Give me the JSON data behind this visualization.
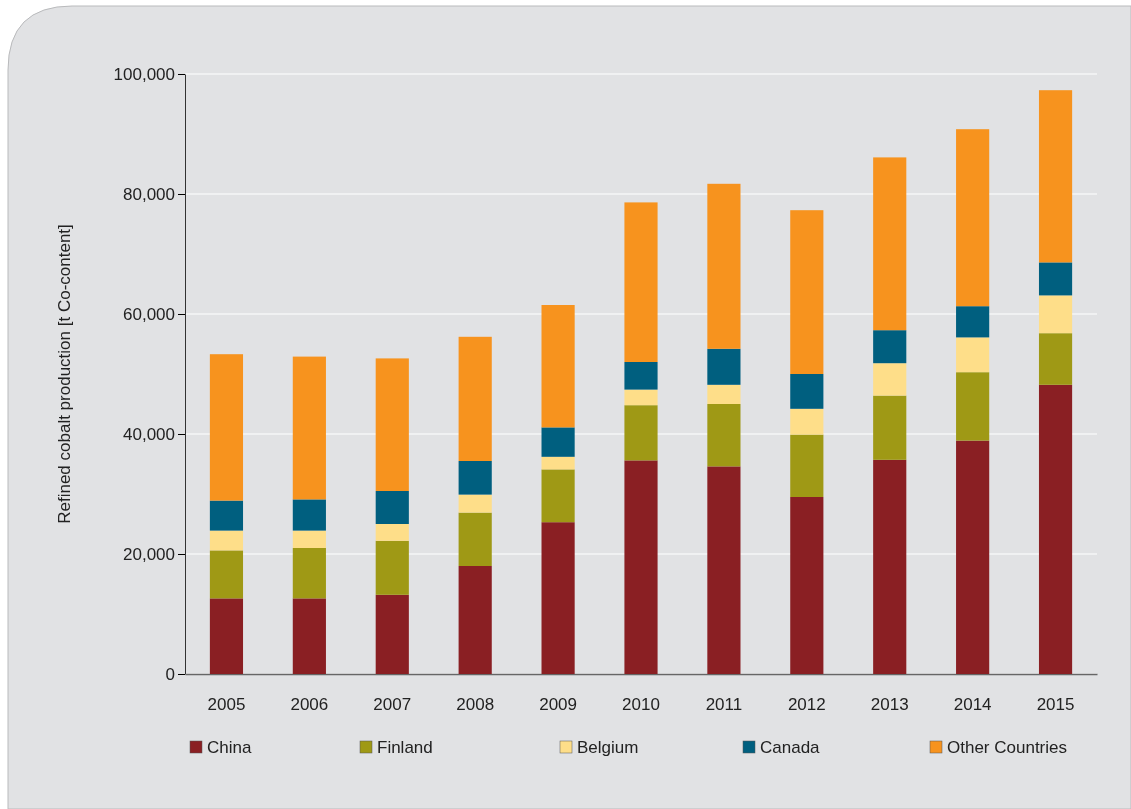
{
  "chart_data": {
    "type": "bar",
    "stacked": true,
    "ylabel": "Refined cobalt production [t Co-content]",
    "categories": [
      "2005",
      "2006",
      "2007",
      "2008",
      "2009",
      "2010",
      "2011",
      "2012",
      "2013",
      "2014",
      "2015"
    ],
    "series": [
      {
        "name": "China",
        "color": "#8a1f23",
        "values": [
          12600,
          12600,
          13200,
          18000,
          25300,
          35600,
          34600,
          29500,
          35700,
          38900,
          48200
        ]
      },
      {
        "name": "Finland",
        "color": "#9f9915",
        "values": [
          8000,
          8400,
          9000,
          8900,
          8800,
          9200,
          10400,
          10400,
          10700,
          11400,
          8600
        ]
      },
      {
        "name": "Belgium",
        "color": "#fede89",
        "values": [
          3300,
          2900,
          2800,
          3000,
          2100,
          2600,
          3200,
          4300,
          5400,
          5800,
          6300
        ]
      },
      {
        "name": "Canada",
        "color": "#005f7f",
        "values": [
          5000,
          5200,
          5500,
          5600,
          4900,
          4600,
          6000,
          5800,
          5500,
          5200,
          5500
        ]
      },
      {
        "name": "Other Countries",
        "color": "#f7931e",
        "values": [
          24400,
          23800,
          22100,
          20700,
          20400,
          26600,
          27500,
          27300,
          28800,
          29500,
          28700
        ]
      }
    ],
    "ylim": [
      0,
      100000
    ],
    "yticks": [
      0,
      {
        "value": 20000,
        "label": "20,000"
      },
      {
        "value": 40000,
        "label": "40,000"
      },
      {
        "value": 60000,
        "label": "60,000"
      },
      {
        "value": 80000,
        "label": "80,000"
      },
      {
        "value": 100000,
        "label": "100,000"
      }
    ],
    "grid": "y",
    "legend": "bottom"
  }
}
